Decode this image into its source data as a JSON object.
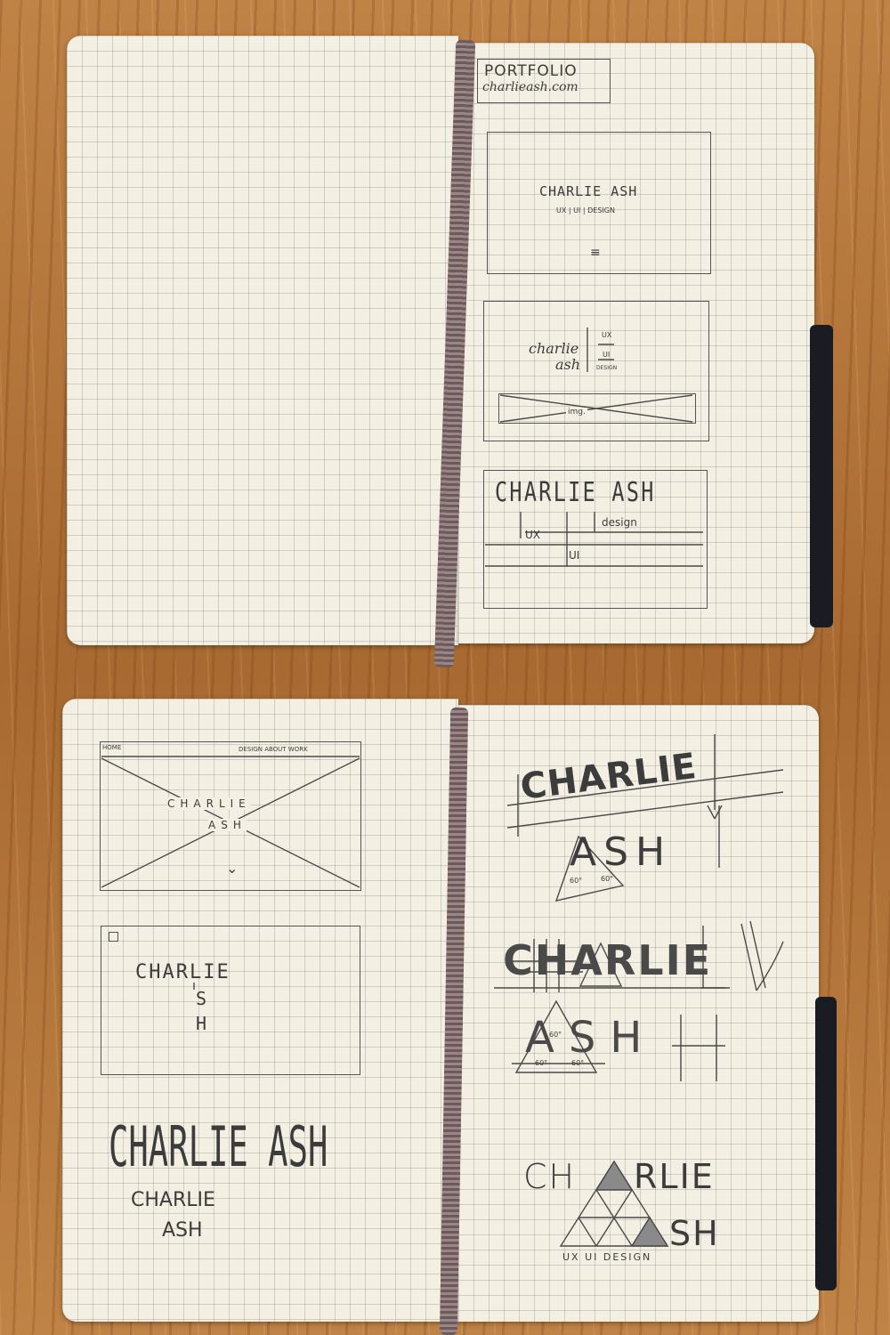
{
  "top_spread": {
    "portfolio_box": {
      "title": "PORTFOLIO",
      "url": "charlieash.com"
    },
    "sketch1": {
      "name": "CHARLIE ASH",
      "tagline": "UX | UI | DESIGN",
      "menu_glyph": "≡"
    },
    "sketch2": {
      "name_line1": "charlie",
      "name_line2": "ash",
      "ux": "UX",
      "ui": "UI",
      "design": "DESIGN",
      "img_label": "img."
    },
    "sketch3": {
      "name": "CHARLIE ASH",
      "ux": "UX",
      "design": "design",
      "ui": "UI"
    }
  },
  "bottom_spread": {
    "wire1": {
      "nav_home": "HOME",
      "nav_right": "DESIGN  ABOUT  WORK",
      "name_line1": "CHARLIE",
      "name_line2": "ASH",
      "chevron": "⌄"
    },
    "wire2": {
      "name_line1": "CHARLIE",
      "name_s": "S",
      "name_h": "H"
    },
    "lettering1": {
      "big": "CHARLIE ASH",
      "line1": "CHARLIE",
      "line2": "ASH"
    },
    "logo1": {
      "line1": "CHARLIE",
      "line2": "ASH",
      "angle1": "60°",
      "angle2": "60°"
    },
    "logo2": {
      "line1": "CHARLIE",
      "line2": "ASH",
      "angle1": "60°",
      "angle2": "60°",
      "angle3": "60°"
    },
    "logo3": {
      "line1_left": "CH",
      "line1_right": "RLIE",
      "line2": "SH",
      "tagline": "UX  UI  DESIGN"
    }
  }
}
